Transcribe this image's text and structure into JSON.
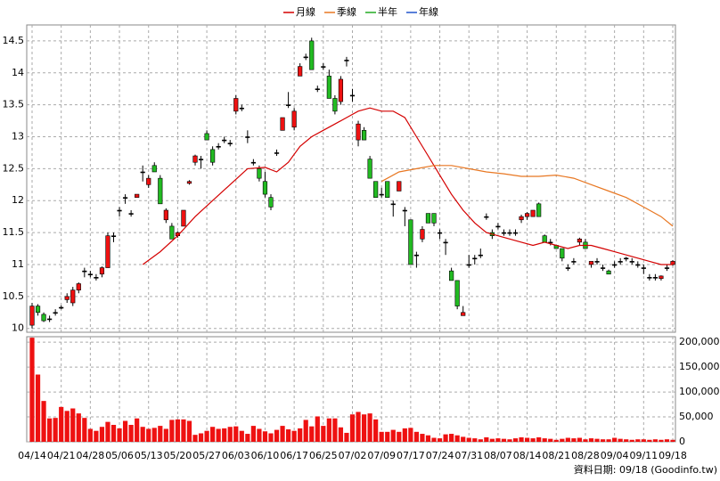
{
  "chart_data": {
    "type": "candlestick",
    "legend": [
      {
        "name": "月線",
        "color": "#d40000"
      },
      {
        "name": "季線",
        "color": "#e87722"
      },
      {
        "name": "半年",
        "color": "#22aa22"
      },
      {
        "name": "年線",
        "color": "#2255cc"
      }
    ],
    "categories": [
      "04/14",
      null,
      null,
      null,
      null,
      "04/21",
      null,
      null,
      null,
      null,
      "04/28",
      null,
      null,
      null,
      null,
      "05/06",
      null,
      null,
      null,
      null,
      "05/13",
      null,
      null,
      null,
      null,
      "05/20",
      null,
      null,
      null,
      null,
      "05/27",
      null,
      null,
      null,
      null,
      "06/03",
      null,
      null,
      null,
      null,
      "06/10",
      null,
      null,
      null,
      null,
      "06/17",
      null,
      null,
      null,
      null,
      "06/25",
      null,
      null,
      null,
      null,
      "07/02",
      null,
      null,
      null,
      null,
      "07/09",
      null,
      null,
      null,
      null,
      "07/17",
      null,
      null,
      null,
      null,
      "07/24",
      null,
      null,
      null,
      null,
      "07/31",
      null,
      null,
      null,
      null,
      "08/07",
      null,
      null,
      null,
      null,
      "08/14",
      null,
      null,
      null,
      null,
      "08/21",
      null,
      null,
      null,
      null,
      "08/28",
      null,
      null,
      null,
      null,
      "09/04",
      null,
      null,
      null,
      null,
      "09/11",
      null,
      null,
      null,
      null,
      "09/18"
    ],
    "candles": [
      [
        10.05,
        10.4,
        10.0,
        10.35
      ],
      [
        10.35,
        10.38,
        10.2,
        10.25
      ],
      [
        10.22,
        10.25,
        10.1,
        10.12
      ],
      [
        10.15,
        10.2,
        10.1,
        10.15
      ],
      [
        10.25,
        10.3,
        10.2,
        10.25
      ],
      [
        10.33,
        10.36,
        10.3,
        10.33
      ],
      [
        10.45,
        10.55,
        10.4,
        10.5
      ],
      [
        10.4,
        10.65,
        10.35,
        10.6
      ],
      [
        10.6,
        10.72,
        10.55,
        10.7
      ],
      [
        10.9,
        10.95,
        10.8,
        10.9
      ],
      [
        10.85,
        10.9,
        10.8,
        10.85
      ],
      [
        10.8,
        10.85,
        10.75,
        10.8
      ],
      [
        10.85,
        10.97,
        10.8,
        10.95
      ],
      [
        10.95,
        11.5,
        10.95,
        11.45
      ],
      [
        11.45,
        11.5,
        11.35,
        11.45
      ],
      [
        11.85,
        11.9,
        11.75,
        11.85
      ],
      [
        12.05,
        12.1,
        11.95,
        12.05
      ],
      [
        11.8,
        11.85,
        11.75,
        11.8
      ],
      [
        12.05,
        12.1,
        12.05,
        12.1
      ],
      [
        12.45,
        12.55,
        12.3,
        12.45
      ],
      [
        12.25,
        12.4,
        12.2,
        12.35
      ],
      [
        12.55,
        12.6,
        12.45,
        12.45
      ],
      [
        12.35,
        12.4,
        11.95,
        11.95
      ],
      [
        11.7,
        11.88,
        11.65,
        11.85
      ],
      [
        11.6,
        11.65,
        11.4,
        11.4
      ],
      [
        11.45,
        11.52,
        11.42,
        11.5
      ],
      [
        11.6,
        11.85,
        11.6,
        11.85
      ],
      [
        12.27,
        12.32,
        12.25,
        12.3
      ],
      [
        12.6,
        12.72,
        12.55,
        12.7
      ],
      [
        12.65,
        12.7,
        12.5,
        12.65
      ],
      [
        13.05,
        13.1,
        12.95,
        12.95
      ],
      [
        12.8,
        12.85,
        12.55,
        12.6
      ],
      [
        12.85,
        12.9,
        12.8,
        12.85
      ],
      [
        12.95,
        13.0,
        12.9,
        12.95
      ],
      [
        12.9,
        12.95,
        12.85,
        12.9
      ],
      [
        13.4,
        13.65,
        13.35,
        13.6
      ],
      [
        13.45,
        13.5,
        13.4,
        13.45
      ],
      [
        13.0,
        13.1,
        12.9,
        13.0
      ],
      [
        12.6,
        12.65,
        12.55,
        12.6
      ],
      [
        12.5,
        12.55,
        12.3,
        12.35
      ],
      [
        12.3,
        12.45,
        12.05,
        12.1
      ],
      [
        12.05,
        12.1,
        11.85,
        11.9
      ],
      [
        12.75,
        12.8,
        12.7,
        12.75
      ],
      [
        13.1,
        13.3,
        13.1,
        13.3
      ],
      [
        13.5,
        13.7,
        13.45,
        13.5
      ],
      [
        13.15,
        13.45,
        13.1,
        13.4
      ],
      [
        13.95,
        14.15,
        13.95,
        14.1
      ],
      [
        14.25,
        14.3,
        14.2,
        14.25
      ],
      [
        14.5,
        14.55,
        14.05,
        14.05
      ],
      [
        13.75,
        13.8,
        13.7,
        13.75
      ],
      [
        14.1,
        14.15,
        14.05,
        14.1
      ],
      [
        13.95,
        14.05,
        13.6,
        13.6
      ],
      [
        13.6,
        13.65,
        13.35,
        13.4
      ],
      [
        13.55,
        13.95,
        13.5,
        13.9
      ],
      [
        14.2,
        14.25,
        14.1,
        14.2
      ],
      [
        13.65,
        13.75,
        13.55,
        13.65
      ],
      [
        12.95,
        13.25,
        12.85,
        13.2
      ],
      [
        13.1,
        13.15,
        12.95,
        12.95
      ],
      [
        12.65,
        12.7,
        12.35,
        12.35
      ],
      [
        12.3,
        12.3,
        12.05,
        12.05
      ],
      [
        12.1,
        12.2,
        12.05,
        12.1
      ],
      [
        12.3,
        12.3,
        12.05,
        12.05
      ],
      [
        11.95,
        12.0,
        11.75,
        11.95
      ],
      [
        12.15,
        12.3,
        12.15,
        12.3
      ],
      [
        11.85,
        11.9,
        11.6,
        11.85
      ],
      [
        11.7,
        11.7,
        11.0,
        11.0
      ],
      [
        11.15,
        11.2,
        10.95,
        11.15
      ],
      [
        11.4,
        11.6,
        11.35,
        11.55
      ],
      [
        11.8,
        11.8,
        11.65,
        11.65
      ],
      [
        11.8,
        11.8,
        11.6,
        11.65
      ],
      [
        11.5,
        11.55,
        11.4,
        11.5
      ],
      [
        11.35,
        11.4,
        11.15,
        11.35
      ],
      [
        10.9,
        10.95,
        10.75,
        10.75
      ],
      [
        10.75,
        10.75,
        10.3,
        10.35
      ],
      [
        10.2,
        10.35,
        10.2,
        10.25
      ],
      [
        11.0,
        11.15,
        10.95,
        11.0
      ],
      [
        11.1,
        11.15,
        11.0,
        11.1
      ],
      [
        11.15,
        11.25,
        11.1,
        11.15
      ],
      [
        11.75,
        11.8,
        11.7,
        11.75
      ],
      [
        11.5,
        11.55,
        11.4,
        11.45
      ],
      [
        11.6,
        11.65,
        11.55,
        11.6
      ],
      [
        11.5,
        11.55,
        11.45,
        11.5
      ],
      [
        11.5,
        11.55,
        11.45,
        11.5
      ],
      [
        11.5,
        11.55,
        11.45,
        11.5
      ],
      [
        11.7,
        11.78,
        11.65,
        11.75
      ],
      [
        11.75,
        11.82,
        11.7,
        11.8
      ],
      [
        11.75,
        11.85,
        11.75,
        11.85
      ],
      [
        11.95,
        11.97,
        11.75,
        11.75
      ],
      [
        11.45,
        11.47,
        11.35,
        11.35
      ],
      [
        11.35,
        11.4,
        11.3,
        11.35
      ],
      [
        11.3,
        11.3,
        11.25,
        11.25
      ],
      [
        11.25,
        11.25,
        11.05,
        11.1
      ],
      [
        10.95,
        11.0,
        10.9,
        10.95
      ],
      [
        11.05,
        11.1,
        11.0,
        11.05
      ],
      [
        11.35,
        11.42,
        11.3,
        11.4
      ],
      [
        11.35,
        11.4,
        11.25,
        11.25
      ],
      [
        11.0,
        11.05,
        10.95,
        11.05
      ],
      [
        11.05,
        11.1,
        11.0,
        11.05
      ],
      [
        10.95,
        11.0,
        10.9,
        10.95
      ],
      [
        10.9,
        10.92,
        10.85,
        10.85
      ],
      [
        11.0,
        11.05,
        10.95,
        11.0
      ],
      [
        11.05,
        11.1,
        11.0,
        11.05
      ],
      [
        11.1,
        11.12,
        11.05,
        11.1
      ],
      [
        11.05,
        11.1,
        11.0,
        11.05
      ],
      [
        11.0,
        11.05,
        10.95,
        11.0
      ],
      [
        10.95,
        11.0,
        10.85,
        10.95
      ],
      [
        10.8,
        10.85,
        10.75,
        10.8
      ],
      [
        10.8,
        10.85,
        10.75,
        10.8
      ],
      [
        10.78,
        10.83,
        10.75,
        10.82
      ],
      [
        10.95,
        11.0,
        10.9,
        10.95
      ],
      [
        11.0,
        11.07,
        10.98,
        11.05
      ]
    ],
    "ma": [
      {
        "name": "月線",
        "color": "#d40000",
        "x": [
          19,
          22,
          25,
          28,
          31,
          34,
          37,
          40,
          42,
          44,
          46,
          48,
          50,
          52,
          54,
          56,
          58,
          60,
          62,
          64,
          66,
          68,
          70,
          72,
          74,
          76,
          78,
          80,
          82,
          84,
          86,
          88,
          90,
          92,
          94,
          96,
          98,
          100,
          102,
          104,
          106,
          108,
          110
        ],
        "values": [
          11.0,
          11.2,
          11.45,
          11.75,
          12.0,
          12.25,
          12.5,
          12.52,
          12.45,
          12.6,
          12.85,
          13.0,
          13.1,
          13.2,
          13.3,
          13.4,
          13.45,
          13.4,
          13.4,
          13.3,
          13.0,
          12.7,
          12.4,
          12.1,
          11.85,
          11.65,
          11.5,
          11.45,
          11.4,
          11.35,
          11.3,
          11.35,
          11.3,
          11.25,
          11.3,
          11.3,
          11.25,
          11.2,
          11.15,
          11.1,
          11.05,
          11.0,
          11.0
        ]
      },
      {
        "name": "季線",
        "color": "#e87722",
        "x": [
          60,
          63,
          66,
          69,
          72,
          75,
          78,
          81,
          84,
          87,
          90,
          93,
          96,
          99,
          102,
          105,
          108,
          110
        ],
        "values": [
          12.3,
          12.45,
          12.5,
          12.55,
          12.55,
          12.5,
          12.45,
          12.42,
          12.38,
          12.38,
          12.4,
          12.35,
          12.25,
          12.15,
          12.05,
          11.9,
          11.75,
          11.6
        ]
      }
    ],
    "ylim": [
      9.94,
      14.75
    ],
    "yticks": [
      10,
      10.5,
      11,
      11.5,
      12,
      12.5,
      13,
      13.5,
      14,
      14.5
    ],
    "volume": [
      209000,
      135000,
      82000,
      47000,
      48000,
      70000,
      62000,
      67000,
      57000,
      48000,
      26000,
      22000,
      30000,
      40000,
      34000,
      27000,
      42000,
      34000,
      47000,
      30000,
      26000,
      28000,
      32000,
      26000,
      44000,
      45000,
      45000,
      42000,
      14000,
      17000,
      22000,
      30000,
      26000,
      27000,
      30000,
      31000,
      22000,
      16000,
      32000,
      26000,
      21000,
      17000,
      24000,
      32000,
      25000,
      22000,
      27000,
      44000,
      31000,
      51000,
      32000,
      47000,
      47000,
      29000,
      18000,
      55000,
      60000,
      55000,
      57000,
      45000,
      20000,
      20000,
      24000,
      20000,
      27000,
      28000,
      20000,
      16000,
      13000,
      8000,
      7000,
      15000,
      16000,
      13000,
      10000,
      8000,
      7000,
      5000,
      9000,
      6000,
      7000,
      6000,
      5000,
      7000,
      9000,
      8000,
      7000,
      9000,
      7000,
      6000,
      4000,
      6000,
      8000,
      7000,
      8000,
      5000,
      7000,
      6000,
      5000,
      5000,
      8000,
      6000,
      5000,
      4000,
      5000,
      5000,
      4000,
      5000,
      4000,
      5000,
      4000
    ],
    "volume_color": "#ee1111",
    "up_color": "#ee1111",
    "down_color": "#22bb22",
    "flat_color": "#000000",
    "vlim": [
      0,
      211000
    ],
    "vticks": [
      0,
      {
        "value": 50000,
        "label": "50,000"
      },
      {
        "value": 100000,
        "label": "100,000"
      },
      {
        "value": 150000,
        "label": "150,000"
      },
      {
        "value": 200000,
        "label": "200,000"
      }
    ],
    "grid": true,
    "source": "資料日期: 09/18 (Goodinfo.tw)"
  }
}
